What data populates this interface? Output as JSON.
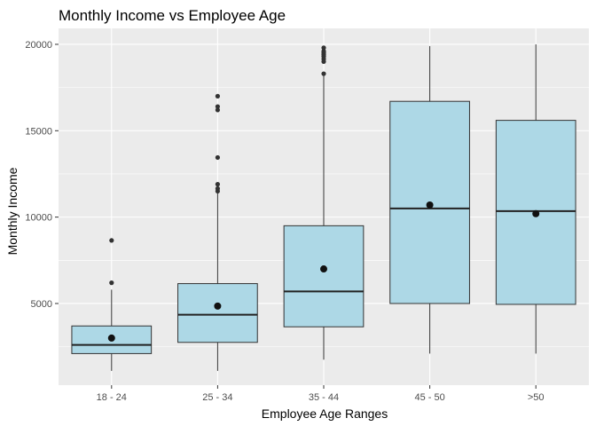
{
  "chart_data": {
    "type": "boxplot",
    "title": "Monthly Income vs Employee Age",
    "xlabel": "Employee Age Ranges",
    "ylabel": "Monthly Income",
    "ylim": [
      0,
      20500
    ],
    "y_ticks": [
      5000,
      10000,
      15000,
      20000
    ],
    "y_tick_labels": [
      "5000",
      "10000",
      "15000",
      "20000"
    ],
    "grid": true,
    "box_fill": "#ADD8E6",
    "panel_background": "#EBEBEB",
    "categories": [
      "18 - 24",
      "25 - 34",
      "35 - 44",
      "45 - 50",
      ">50"
    ],
    "boxes": [
      {
        "category": "18 - 24",
        "min": 1100,
        "q1": 2100,
        "median": 2600,
        "q3": 3700,
        "max": 5800,
        "mean": 3000,
        "outliers": [
          6200,
          8650
        ]
      },
      {
        "category": "25 - 34",
        "min": 1100,
        "q1": 2750,
        "median": 4350,
        "q3": 6150,
        "max": 11400,
        "mean": 4850,
        "outliers": [
          11500,
          11650,
          11900,
          13450,
          16200,
          16400,
          17000
        ]
      },
      {
        "category": "35 - 44",
        "min": 1750,
        "q1": 3650,
        "median": 5700,
        "q3": 9500,
        "max": 18200,
        "mean": 7000,
        "outliers": [
          18300,
          19000,
          19150,
          19300,
          19400,
          19500,
          19600,
          19800
        ]
      },
      {
        "category": "45 - 50",
        "min": 2100,
        "q1": 5000,
        "median": 10500,
        "q3": 16700,
        "max": 19900,
        "mean": 10700,
        "outliers": []
      },
      {
        "category": ">50",
        "min": 2100,
        "q1": 4950,
        "median": 10350,
        "q3": 15600,
        "max": 20000,
        "mean": 10200,
        "outliers": []
      }
    ]
  }
}
